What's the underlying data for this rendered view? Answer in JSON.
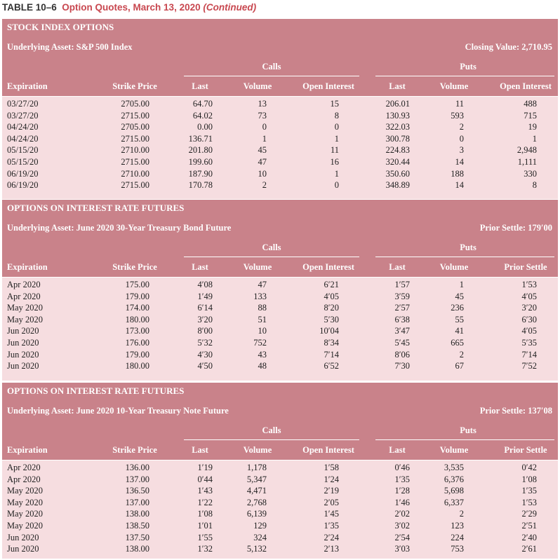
{
  "title": {
    "number": "TABLE 10–6",
    "text": "Option Quotes, March 13, 2020",
    "suffix": "(Continued)"
  },
  "sections": [
    {
      "heading": "STOCK INDEX OPTIONS",
      "underlying": "Underlying Asset: S&P 500 Index",
      "reference": "Closing Value: 2,710.95",
      "groups": [
        "Calls",
        "Puts"
      ],
      "columns": [
        "Expiration",
        "Strike Price",
        "Last",
        "Volume",
        "Open Interest",
        "Last",
        "Volume",
        "Open Interest"
      ],
      "rows": [
        [
          "03/27/20",
          "2705.00",
          "64.70",
          "13",
          "15",
          "206.01",
          "11",
          "488"
        ],
        [
          "03/27/20",
          "2715.00",
          "64.02",
          "73",
          "8",
          "130.93",
          "593",
          "715"
        ],
        [
          "04/24/20",
          "2705.00",
          "0.00",
          "0",
          "0",
          "322.03",
          "2",
          "19"
        ],
        [
          "04/24/20",
          "2715.00",
          "136.71",
          "1",
          "1",
          "300.78",
          "0",
          "1"
        ],
        [
          "05/15/20",
          "2710.00",
          "201.80",
          "45",
          "11",
          "224.83",
          "3",
          "2,948"
        ],
        [
          "05/15/20",
          "2715.00",
          "199.60",
          "47",
          "16",
          "320.44",
          "14",
          "1,111"
        ],
        [
          "06/19/20",
          "2710.00",
          "187.90",
          "10",
          "1",
          "350.60",
          "188",
          "330"
        ],
        [
          "06/19/20",
          "2715.00",
          "170.78",
          "2",
          "0",
          "348.89",
          "14",
          "8"
        ]
      ]
    },
    {
      "heading": "OPTIONS ON INTEREST RATE FUTURES",
      "underlying": "Underlying Asset: June 2020 30-Year Treasury Bond Future",
      "reference": "Prior Settle: 179′00",
      "groups": [
        "Calls",
        "Puts"
      ],
      "columns": [
        "Expiration",
        "Strike Price",
        "Last",
        "Volume",
        "Open Interest",
        "Last",
        "Volume",
        "Prior Settle"
      ],
      "rows": [
        [
          "Apr 2020",
          "175.00",
          "4′08",
          "47",
          "6′21",
          "1′57",
          "1",
          "1′53"
        ],
        [
          "Apr 2020",
          "179.00",
          "1′49",
          "133",
          "4′05",
          "3′59",
          "45",
          "4′05"
        ],
        [
          "May 2020",
          "174.00",
          "6′14",
          "88",
          "8′20",
          "2′57",
          "236",
          "3′20"
        ],
        [
          "May 2020",
          "180.00",
          "3′20",
          "51",
          "5′30",
          "6′38",
          "55",
          "6′30"
        ],
        [
          "Jun 2020",
          "173.00",
          "8′00",
          "10",
          "10′04",
          "3′47",
          "41",
          "4′05"
        ],
        [
          "Jun 2020",
          "176.00",
          "5′32",
          "752",
          "8′34",
          "5′45",
          "665",
          "5′35"
        ],
        [
          "Jun 2020",
          "179.00",
          "4′30",
          "43",
          "7′14",
          "8′06",
          "2",
          "7′14"
        ],
        [
          "Jun 2020",
          "180.00",
          "4′50",
          "48",
          "6′52",
          "7′30",
          "67",
          "7′52"
        ]
      ]
    },
    {
      "heading": "OPTIONS ON INTEREST RATE FUTURES",
      "underlying": "Underlying Asset: June 2020 10-Year Treasury Note Future",
      "reference": "Prior Settle: 137′08",
      "groups": [
        "Calls",
        "Puts"
      ],
      "columns": [
        "Expiration",
        "Strike Price",
        "Last",
        "Volume",
        "Open Interest",
        "Last",
        "Volume",
        "Prior Settle"
      ],
      "rows": [
        [
          "Apr 2020",
          "136.00",
          "1′19",
          "1,178",
          "1′58",
          "0′46",
          "3,535",
          "0′42"
        ],
        [
          "Apr 2020",
          "137.00",
          "0′44",
          "5,347",
          "1′24",
          "1′35",
          "6,376",
          "1′08"
        ],
        [
          "May 2020",
          "136.50",
          "1′43",
          "4,471",
          "2′19",
          "1′28",
          "5,698",
          "1′35"
        ],
        [
          "May 2020",
          "137.00",
          "1′22",
          "2,768",
          "2′05",
          "1′46",
          "6,337",
          "1′53"
        ],
        [
          "May 2020",
          "138.00",
          "1′08",
          "6,139",
          "1′45",
          "2′02",
          "2",
          "2′29"
        ],
        [
          "May 2020",
          "138.50",
          "1′01",
          "129",
          "1′35",
          "3′02",
          "123",
          "2′51"
        ],
        [
          "Jun 2020",
          "137.50",
          "1′55",
          "324",
          "2′24",
          "2′54",
          "224",
          "2′40"
        ],
        [
          "Jun 2020",
          "138.00",
          "1′32",
          "5,132",
          "2′13",
          "3′03",
          "753",
          "2′61"
        ]
      ]
    }
  ]
}
